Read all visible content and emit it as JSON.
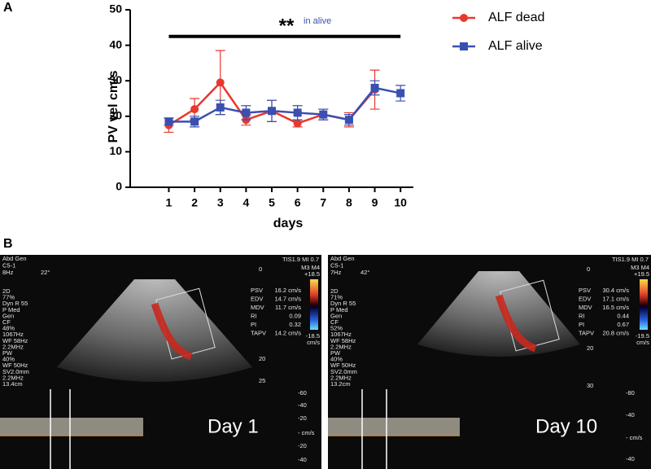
{
  "panel_labels": [
    "A",
    "B"
  ],
  "chart_data": {
    "type": "line",
    "x_label": "days",
    "y_label": "PV vel cm/s",
    "x": [
      1,
      2,
      3,
      4,
      5,
      6,
      7,
      8,
      9,
      10
    ],
    "xlim": [
      -0.5,
      10.5
    ],
    "xticks": [
      1,
      2,
      3,
      4,
      5,
      6,
      7,
      8,
      9,
      10
    ],
    "ylim": [
      0,
      50
    ],
    "yticks": [
      0,
      10,
      20,
      30,
      40,
      50
    ],
    "legend": "top-right",
    "series": [
      {
        "name": "ALF dead",
        "color": "#e8382e",
        "marker": "circle",
        "values": [
          17.5,
          22,
          29.5,
          19,
          21.5,
          18,
          20.5,
          19,
          27.5,
          null
        ],
        "errors": [
          2,
          3,
          9,
          1.5,
          3,
          1,
          1.5,
          2,
          5.5,
          null
        ]
      },
      {
        "name": "ALF alive",
        "color": "#3a4fb0",
        "marker": "square",
        "values": [
          18.5,
          18.5,
          22.5,
          21,
          21.5,
          21,
          20.5,
          19,
          28,
          26.5
        ],
        "errors": [
          1,
          1.5,
          2,
          2,
          3,
          2,
          1.5,
          1.5,
          2,
          2.2
        ]
      }
    ],
    "annotation": {
      "text": "**",
      "note": "in alive",
      "span": [
        1,
        10
      ],
      "y": 42.5
    }
  },
  "ultrasound_images": [
    {
      "header": [
        "Abd Gen",
        "C5-1",
        "8Hz",
        "22°"
      ],
      "tis": "TIS1.9   MI 0.7",
      "settings": [
        "2D",
        "77%",
        "Dyn R 55",
        "P Med",
        "Gen",
        "CF",
        "48%",
        "1067Hz",
        "WF 58Hz",
        "2.2MHz",
        "PW",
        "40%",
        "WF 50Hz",
        "SV2.0mm",
        "2.2MHz",
        "13.4cm"
      ],
      "measurements": [
        [
          "PSV",
          "16.2 cm/s"
        ],
        [
          "EDV",
          "14.7 cm/s"
        ],
        [
          "MDV",
          "11.7 cm/s"
        ],
        [
          "RI",
          "0.09"
        ],
        [
          "PI",
          "0.32"
        ],
        [
          "TAPV",
          "14.2 cm/s"
        ]
      ],
      "depth_labels": [
        "0",
        "20",
        "25"
      ],
      "color_scale": [
        "M3 M4",
        "+18.5",
        "-18.5",
        "cm/s"
      ],
      "doppler_scale": [
        "-60",
        "-40",
        "-20",
        "- cm/s",
        "-20",
        "-40"
      ],
      "day_label": "Day 1"
    },
    {
      "header": [
        "Abd Gen",
        "C5-1",
        "7Hz",
        "42°"
      ],
      "tis": "TIS1.9   MI 0.7",
      "settings": [
        "2D",
        "71%",
        "Dyn R 55",
        "P Med",
        "Gen",
        "CF",
        "52%",
        "1067Hz",
        "WF 58Hz",
        "2.2MHz",
        "PW",
        "40%",
        "WF 50Hz",
        "SV2.0mm",
        "2.2MHz",
        "13.2cm"
      ],
      "measurements": [
        [
          "PSV",
          "30.4 cm/s"
        ],
        [
          "EDV",
          "17.1 cm/s"
        ],
        [
          "MDV",
          "16.5 cm/s"
        ],
        [
          "RI",
          "0.44"
        ],
        [
          "PI",
          "0.67"
        ],
        [
          "TAPV",
          "20.8 cm/s"
        ]
      ],
      "depth_labels": [
        "0",
        "20",
        "30"
      ],
      "color_scale": [
        "M3 M4",
        "+19.5",
        "-19.5",
        "cm/s"
      ],
      "doppler_scale": [
        "-80",
        "-40",
        "- cm/s",
        "-40"
      ],
      "day_label": "Day 10"
    }
  ]
}
